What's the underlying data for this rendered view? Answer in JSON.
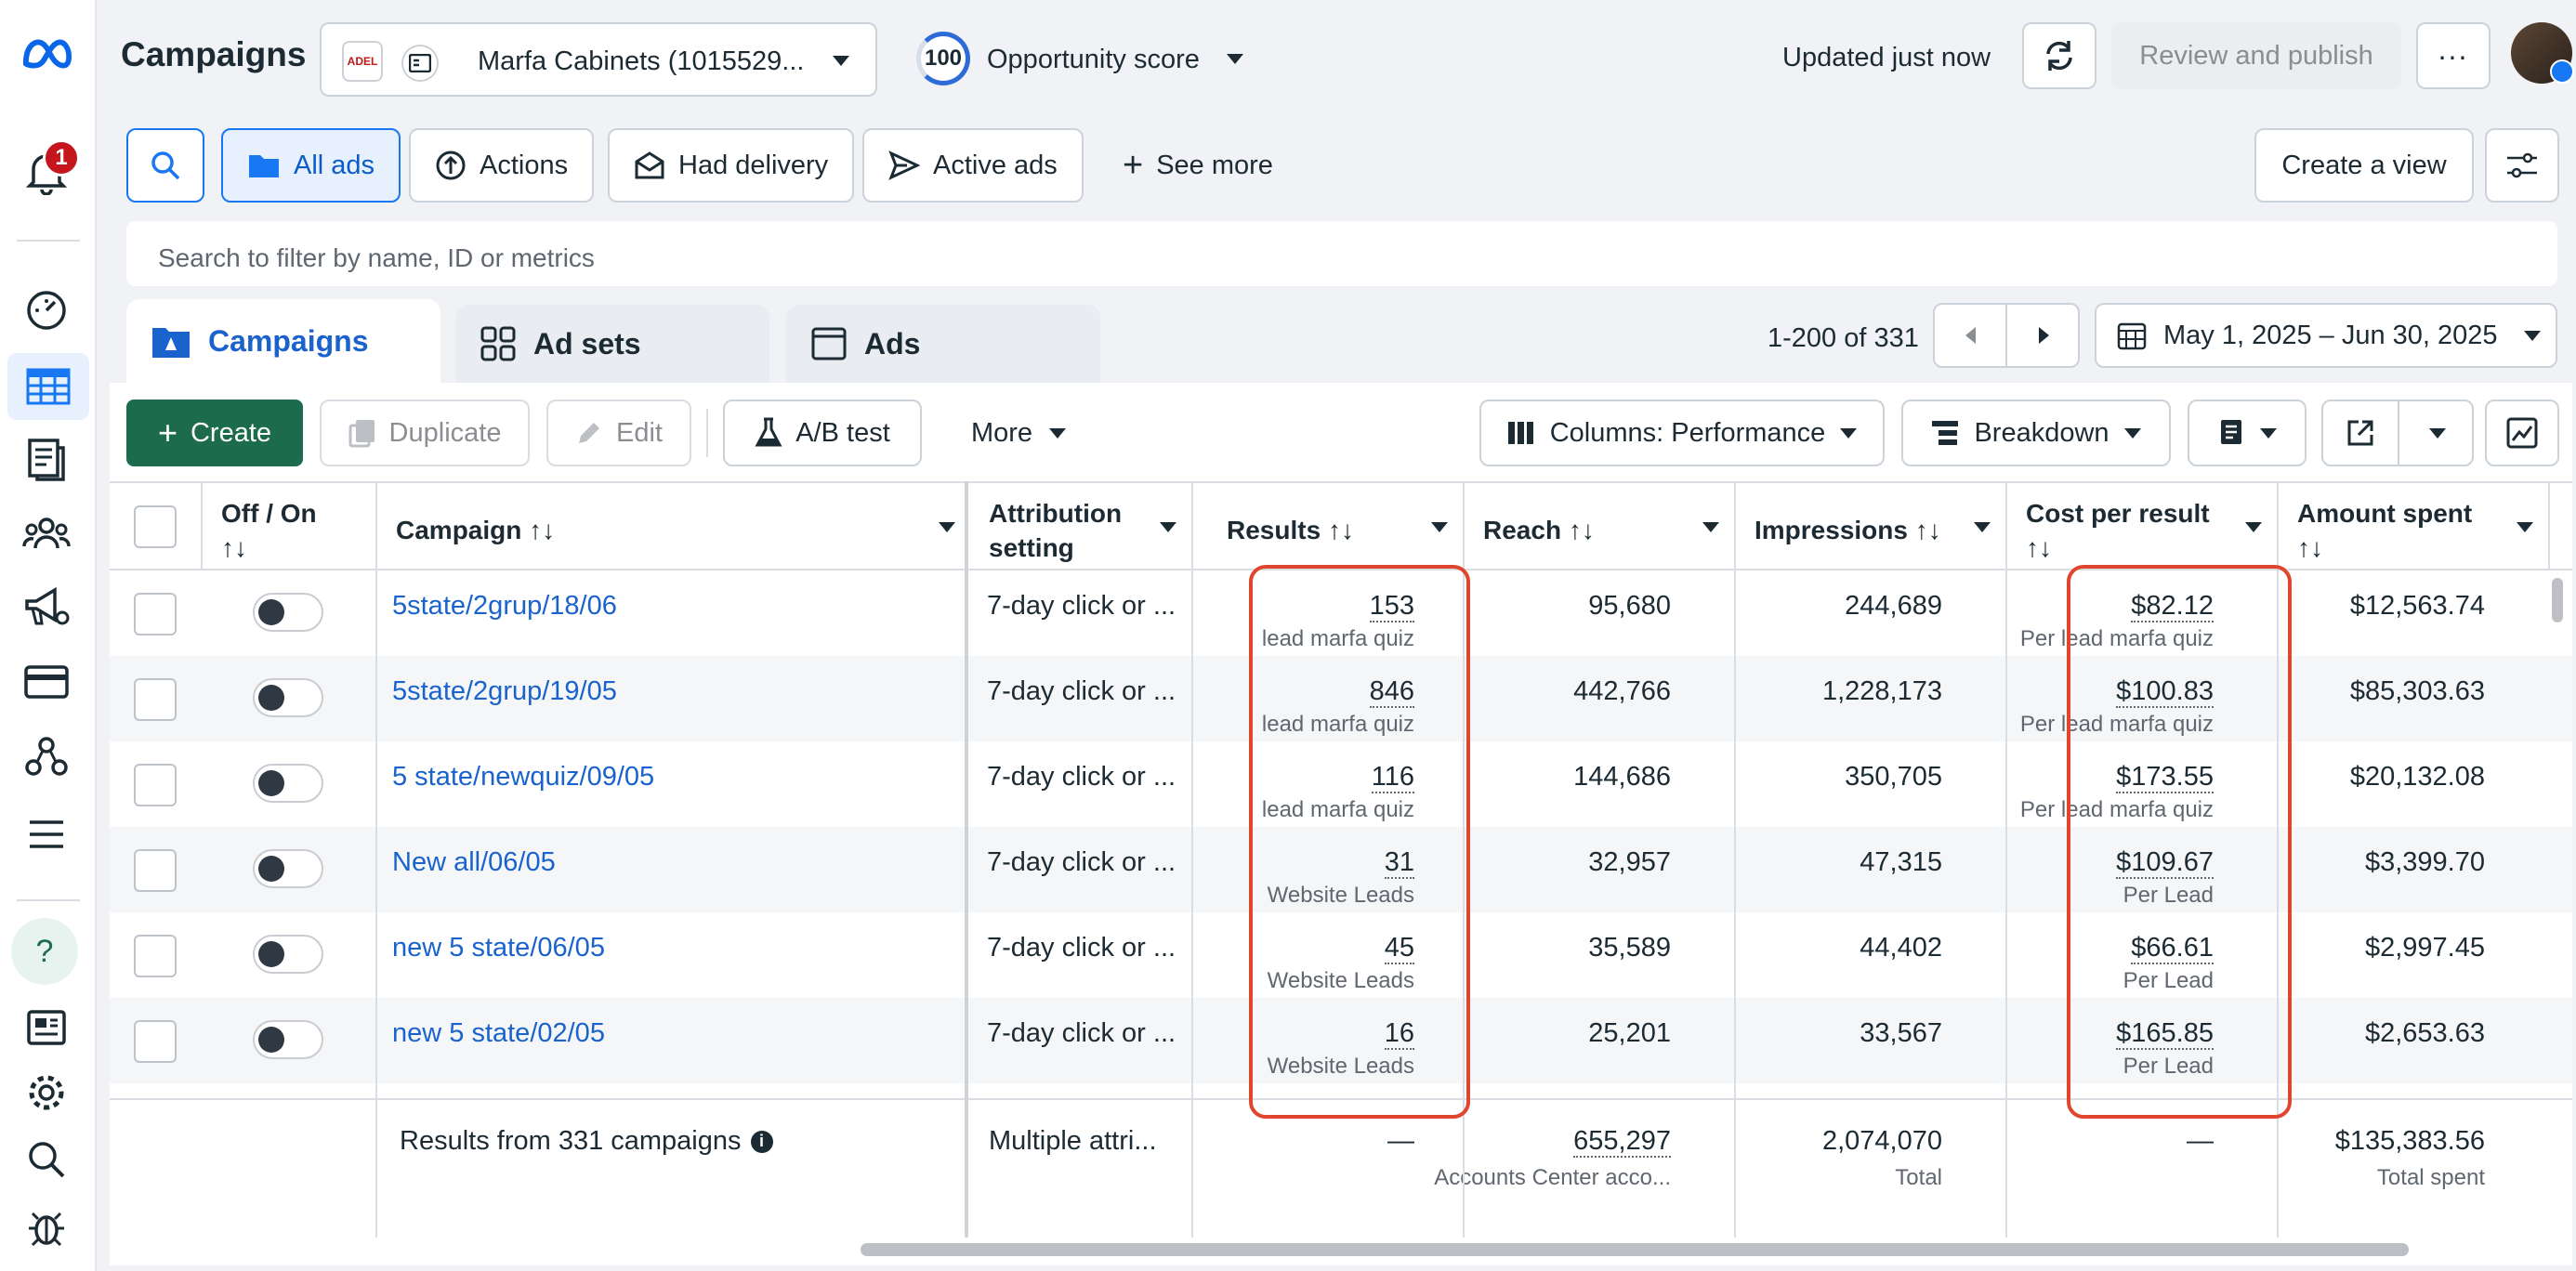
{
  "header": {
    "title": "Campaigns",
    "account_logo_text": "ADEL",
    "account_name": "Marfa Cabinets (1015529...",
    "opportunity_score_value": "100",
    "opportunity_score_label": "Opportunity score",
    "updated_text": "Updated just now",
    "review_publish_label": "Review and publish",
    "notifications_count": "1"
  },
  "filters": {
    "all_ads": "All ads",
    "actions": "Actions",
    "had_delivery": "Had delivery",
    "active_ads": "Active ads",
    "see_more": "See more",
    "create_view": "Create a view",
    "search_placeholder": "Search to filter by name, ID or metrics"
  },
  "tabs": {
    "campaigns": "Campaigns",
    "ad_sets": "Ad sets",
    "ads": "Ads"
  },
  "pager": {
    "range": "1-200 of 331",
    "date_range": "May 1, 2025 – Jun 30, 2025"
  },
  "toolbar": {
    "create": "Create",
    "duplicate": "Duplicate",
    "edit": "Edit",
    "ab_test": "A/B test",
    "more": "More",
    "columns": "Columns: Performance",
    "breakdown": "Breakdown"
  },
  "columns": {
    "off_on": "Off / On",
    "campaign": "Campaign",
    "attribution_1": "Attribution",
    "attribution_2": "setting",
    "results": "Results",
    "reach": "Reach",
    "impressions": "Impressions",
    "cost_per_result": "Cost per result",
    "amount_spent": "Amount spent",
    "sort_glyph": "↑↓"
  },
  "rows": [
    {
      "campaign": "5state/2grup/18/06",
      "attribution": "7-day click or ...",
      "results": "153",
      "results_sub": "lead marfa quiz",
      "reach": "95,680",
      "impressions": "244,689",
      "cpr": "$82.12",
      "cpr_sub": "Per lead marfa quiz",
      "spent": "$12,563.74"
    },
    {
      "campaign": "5state/2grup/19/05",
      "attribution": "7-day click or ...",
      "results": "846",
      "results_sub": "lead marfa quiz",
      "reach": "442,766",
      "impressions": "1,228,173",
      "cpr": "$100.83",
      "cpr_sub": "Per lead marfa quiz",
      "spent": "$85,303.63"
    },
    {
      "campaign": "5 state/newquiz/09/05",
      "attribution": "7-day click or ...",
      "results": "116",
      "results_sub": "lead marfa quiz",
      "reach": "144,686",
      "impressions": "350,705",
      "cpr": "$173.55",
      "cpr_sub": "Per lead marfa quiz",
      "spent": "$20,132.08"
    },
    {
      "campaign": "New all/06/05",
      "attribution": "7-day click or ...",
      "results": "31",
      "results_sub": "Website Leads",
      "reach": "32,957",
      "impressions": "47,315",
      "cpr": "$109.67",
      "cpr_sub": "Per Lead",
      "spent": "$3,399.70"
    },
    {
      "campaign": "new 5 state/06/05",
      "attribution": "7-day click or ...",
      "results": "45",
      "results_sub": "Website Leads",
      "reach": "35,589",
      "impressions": "44,402",
      "cpr": "$66.61",
      "cpr_sub": "Per Lead",
      "spent": "$2,997.45"
    },
    {
      "campaign": "new 5 state/02/05",
      "attribution": "7-day click or ...",
      "results": "16",
      "results_sub": "Website Leads",
      "reach": "25,201",
      "impressions": "33,567",
      "cpr": "$165.85",
      "cpr_sub": "Per Lead",
      "spent": "$2,653.63"
    }
  ],
  "totals": {
    "label": "Results from 331 campaigns",
    "attribution": "Multiple attri...",
    "results": "—",
    "reach": "655,297",
    "reach_sub": "Accounts Center acco...",
    "impressions": "2,074,070",
    "impressions_sub": "Total",
    "cpr": "—",
    "spent": "$135,383.56",
    "spent_sub": "Total spent"
  },
  "colors": {
    "accent": "#1877f2",
    "create_green": "#1c6b4d",
    "highlight_red": "#e0452e",
    "link_blue": "#1a63cc"
  }
}
